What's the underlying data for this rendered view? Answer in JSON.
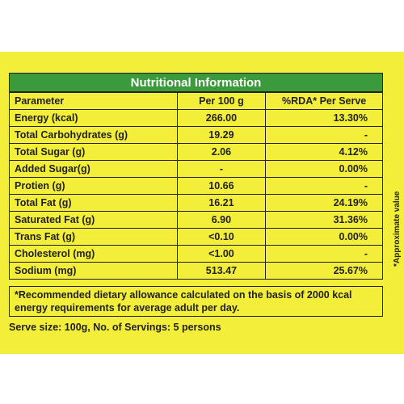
{
  "title": "Nutritional Information",
  "columns": [
    "Parameter",
    "Per 100 g",
    "%RDA* Per Serve"
  ],
  "rows": [
    {
      "parameter": "Energy (kcal)",
      "per100": "266.00",
      "rda": "13.30%"
    },
    {
      "parameter": "Total Carbohydrates (g)",
      "per100": "19.29",
      "rda": "-"
    },
    {
      "parameter": "Total Sugar (g)",
      "per100": "2.06",
      "rda": "4.12%"
    },
    {
      "parameter": "Added Sugar(g)",
      "per100": "-",
      "rda": "0.00%"
    },
    {
      "parameter": "Protien (g)",
      "per100": "10.66",
      "rda": "-"
    },
    {
      "parameter": "Total Fat (g)",
      "per100": "16.21",
      "rda": "24.19%"
    },
    {
      "parameter": "Saturated Fat (g)",
      "per100": "6.90",
      "rda": "31.36%"
    },
    {
      "parameter": "Trans Fat (g)",
      "per100": "<0.10",
      "rda": "0.00%"
    },
    {
      "parameter": "Cholesterol (mg)",
      "per100": "<1.00",
      "rda": "-"
    },
    {
      "parameter": "Sodium (mg)",
      "per100": "513.47",
      "rda": "25.67%"
    }
  ],
  "footnote": "*Recommended dietary allowance calculated on the basis of 2000 kcal energy requirements for average adult per day.",
  "serve": "Serve size: 100g, No. of Servings: 5 persons",
  "side_note": "*Approximate value",
  "colors": {
    "background": "#f3ee3a",
    "header": "#3a9a3c"
  }
}
